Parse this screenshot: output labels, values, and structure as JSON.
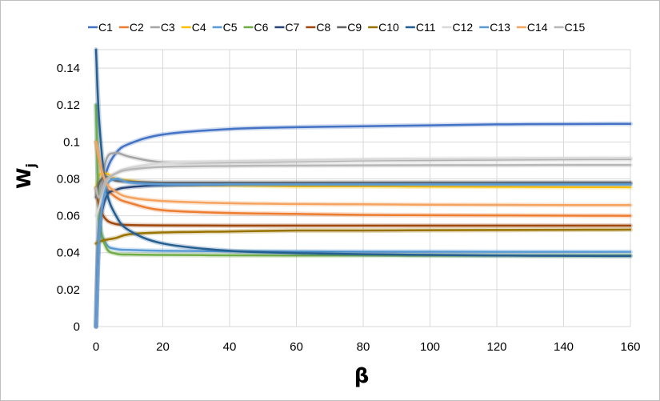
{
  "chart_data": {
    "type": "line",
    "xlabel": "β",
    "ylabel": "W",
    "ylabel_sub": "j",
    "xlim": [
      0,
      160
    ],
    "ylim": [
      0,
      0.15
    ],
    "xticks": [
      0,
      20,
      40,
      60,
      80,
      100,
      120,
      140,
      160
    ],
    "yticks": [
      0,
      0.02,
      0.04,
      0.06,
      0.08,
      0.1,
      0.12,
      0.14
    ],
    "xtick_labels": [
      "0",
      "20",
      "40",
      "60",
      "80",
      "100",
      "120",
      "140",
      "160"
    ],
    "ytick_labels": [
      "0",
      "0.02",
      "0.04",
      "0.06",
      "0.08",
      "0.1",
      "0.12",
      "0.14"
    ],
    "grid": "vertical and horizontal",
    "legend_position": "top",
    "series": [
      {
        "name": "C1",
        "color": "#4472c4",
        "x": [
          0,
          1,
          3,
          6,
          10,
          20,
          40,
          60,
          80,
          100,
          120,
          140,
          160
        ],
        "y": [
          0.0,
          0.06,
          0.083,
          0.094,
          0.099,
          0.104,
          0.107,
          0.108,
          0.1085,
          0.109,
          0.1095,
          0.1097,
          0.1098
        ]
      },
      {
        "name": "C2",
        "color": "#ed7d31",
        "x": [
          0,
          1,
          3,
          6,
          10,
          20,
          40,
          60,
          80,
          100,
          120,
          140,
          160
        ],
        "y": [
          0.1,
          0.09,
          0.076,
          0.07,
          0.067,
          0.063,
          0.0615,
          0.061,
          0.0605,
          0.0603,
          0.0602,
          0.0601,
          0.06
        ]
      },
      {
        "name": "C3",
        "color": "#a5a5a5",
        "x": [
          0,
          1,
          3,
          6,
          10,
          20,
          40,
          60,
          80,
          100,
          120,
          140,
          160
        ],
        "y": [
          0.0,
          0.065,
          0.09,
          0.094,
          0.092,
          0.089,
          0.089,
          0.0895,
          0.09,
          0.0902,
          0.0904,
          0.0906,
          0.0907
        ]
      },
      {
        "name": "C4",
        "color": "#ffc000",
        "x": [
          0,
          1,
          3,
          6,
          10,
          20,
          40,
          60,
          80,
          100,
          120,
          140,
          160
        ],
        "y": [
          0.075,
          0.082,
          0.083,
          0.08,
          0.079,
          0.077,
          0.0765,
          0.076,
          0.076,
          0.0758,
          0.0757,
          0.0756,
          0.0755
        ]
      },
      {
        "name": "C5",
        "color": "#5b9bd5",
        "x": [
          0,
          1,
          3,
          6,
          10,
          20,
          40,
          60,
          80,
          100,
          120,
          140,
          160
        ],
        "y": [
          0.12,
          0.06,
          0.045,
          0.042,
          0.0415,
          0.041,
          0.0408,
          0.0407,
          0.0406,
          0.0406,
          0.0405,
          0.0405,
          0.0405
        ]
      },
      {
        "name": "C6",
        "color": "#70ad47",
        "x": [
          0,
          1,
          3,
          6,
          10,
          20,
          40,
          60,
          80,
          100,
          120,
          140,
          160
        ],
        "y": [
          0.12,
          0.06,
          0.043,
          0.0395,
          0.039,
          0.0388,
          0.0386,
          0.0385,
          0.0385,
          0.0384,
          0.0384,
          0.0384,
          0.0384
        ]
      },
      {
        "name": "C7",
        "color": "#264478",
        "x": [
          0,
          1,
          3,
          6,
          10,
          20,
          40,
          60,
          80,
          100,
          120,
          140,
          160
        ],
        "y": [
          0.0,
          0.05,
          0.07,
          0.074,
          0.0755,
          0.0765,
          0.077,
          0.0772,
          0.0773,
          0.0774,
          0.0774,
          0.0775,
          0.0775
        ]
      },
      {
        "name": "C8",
        "color": "#9e480e",
        "x": [
          0,
          1,
          3,
          6,
          10,
          20,
          40,
          60,
          80,
          100,
          120,
          140,
          160
        ],
        "y": [
          0.075,
          0.065,
          0.058,
          0.0555,
          0.055,
          0.0548,
          0.0547,
          0.0547,
          0.0547,
          0.0547,
          0.0547,
          0.0547,
          0.0547
        ]
      },
      {
        "name": "C9",
        "color": "#636363",
        "x": [
          0,
          1,
          3,
          6,
          10,
          20,
          40,
          60,
          80,
          100,
          120,
          140,
          160
        ],
        "y": [
          0.07,
          0.078,
          0.081,
          0.079,
          0.0785,
          0.078,
          0.078,
          0.078,
          0.078,
          0.078,
          0.078,
          0.078,
          0.078
        ]
      },
      {
        "name": "C10",
        "color": "#997300",
        "x": [
          0,
          1,
          3,
          6,
          10,
          20,
          40,
          60,
          80,
          100,
          120,
          140,
          160
        ],
        "y": [
          0.045,
          0.046,
          0.047,
          0.048,
          0.05,
          0.051,
          0.0515,
          0.052,
          0.052,
          0.0522,
          0.0523,
          0.0524,
          0.0525
        ]
      },
      {
        "name": "C11",
        "color": "#255e91",
        "x": [
          0,
          1,
          3,
          6,
          10,
          20,
          40,
          60,
          80,
          100,
          120,
          140,
          160
        ],
        "y": [
          0.15,
          0.11,
          0.075,
          0.06,
          0.052,
          0.045,
          0.041,
          0.0398,
          0.0392,
          0.0388,
          0.0385,
          0.0383,
          0.0382
        ]
      },
      {
        "name": "C12",
        "color": "#d9d9d9",
        "x": [
          0,
          1,
          3,
          6,
          10,
          20,
          40,
          60,
          80,
          100,
          120,
          140,
          160
        ],
        "y": [
          0.06,
          0.065,
          0.078,
          0.083,
          0.086,
          0.0885,
          0.0895,
          0.09,
          0.0905,
          0.0908,
          0.091,
          0.0912,
          0.0913
        ]
      },
      {
        "name": "C13",
        "color": "#5b9bd5",
        "x": [
          0,
          1,
          3,
          6,
          10,
          20,
          40,
          60,
          80,
          100,
          120,
          140,
          160
        ],
        "y": [
          0.0,
          0.05,
          0.075,
          0.08,
          0.078,
          0.077,
          0.077,
          0.077,
          0.077,
          0.077,
          0.077,
          0.077,
          0.077
        ]
      },
      {
        "name": "C14",
        "color": "#f4a460",
        "x": [
          0,
          1,
          3,
          6,
          10,
          20,
          40,
          60,
          80,
          100,
          120,
          140,
          160
        ],
        "y": [
          0.1,
          0.09,
          0.078,
          0.073,
          0.07,
          0.068,
          0.0668,
          0.0664,
          0.0662,
          0.066,
          0.0659,
          0.0658,
          0.0658
        ]
      },
      {
        "name": "C15",
        "color": "#b7b7b7",
        "x": [
          0,
          1,
          3,
          6,
          10,
          20,
          40,
          60,
          80,
          100,
          120,
          140,
          160
        ],
        "y": [
          0.075,
          0.07,
          0.079,
          0.083,
          0.085,
          0.0865,
          0.087,
          0.0872,
          0.0873,
          0.0874,
          0.0874,
          0.0875,
          0.0875
        ]
      }
    ]
  }
}
